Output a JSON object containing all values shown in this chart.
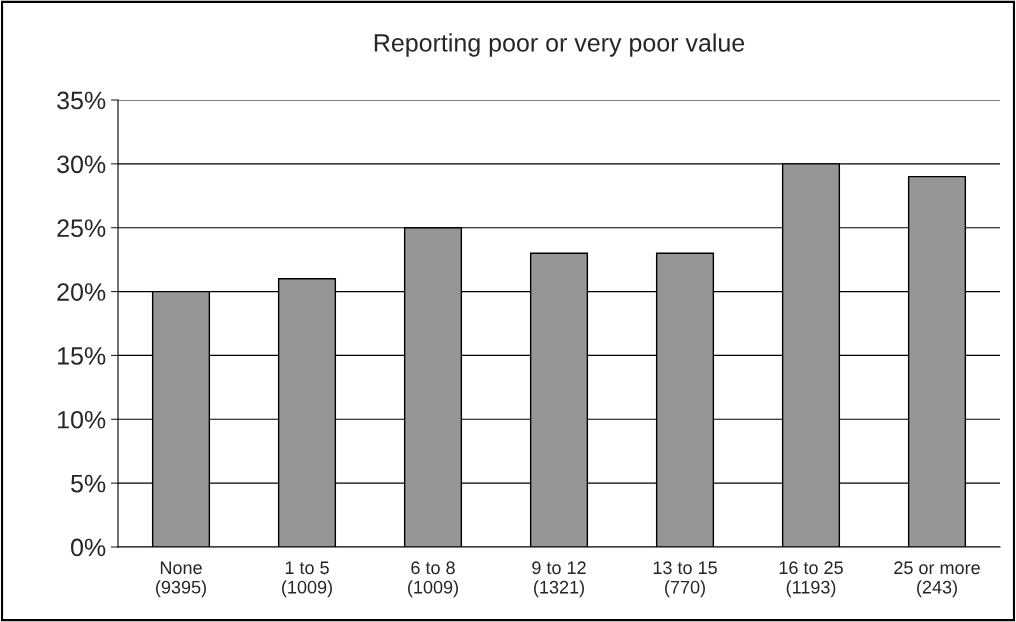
{
  "chart_data": {
    "type": "bar",
    "title": "Reporting poor or very poor value",
    "categories": [
      "None\n(9395)",
      "1 to 5\n(1009)",
      "6 to 8\n(1009)",
      "9 to 12\n(1321)",
      "13 to 15\n(770)",
      "16 to 25\n(1193)",
      "25 or more\n(243)"
    ],
    "values": [
      20,
      21,
      25,
      23,
      23,
      30,
      29
    ],
    "color": "#969696",
    "ylim": [
      0,
      35
    ],
    "yticks": [
      {
        "value": 0,
        "label": "0%"
      },
      {
        "value": 5,
        "label": "5%"
      },
      {
        "value": 10,
        "label": "10%"
      },
      {
        "value": 15,
        "label": "15%"
      },
      {
        "value": 20,
        "label": "20%"
      },
      {
        "value": 25,
        "label": "25%"
      },
      {
        "value": 30,
        "label": "30%"
      },
      {
        "value": 35,
        "label": "35%"
      }
    ],
    "grid": "y",
    "legend": false
  }
}
